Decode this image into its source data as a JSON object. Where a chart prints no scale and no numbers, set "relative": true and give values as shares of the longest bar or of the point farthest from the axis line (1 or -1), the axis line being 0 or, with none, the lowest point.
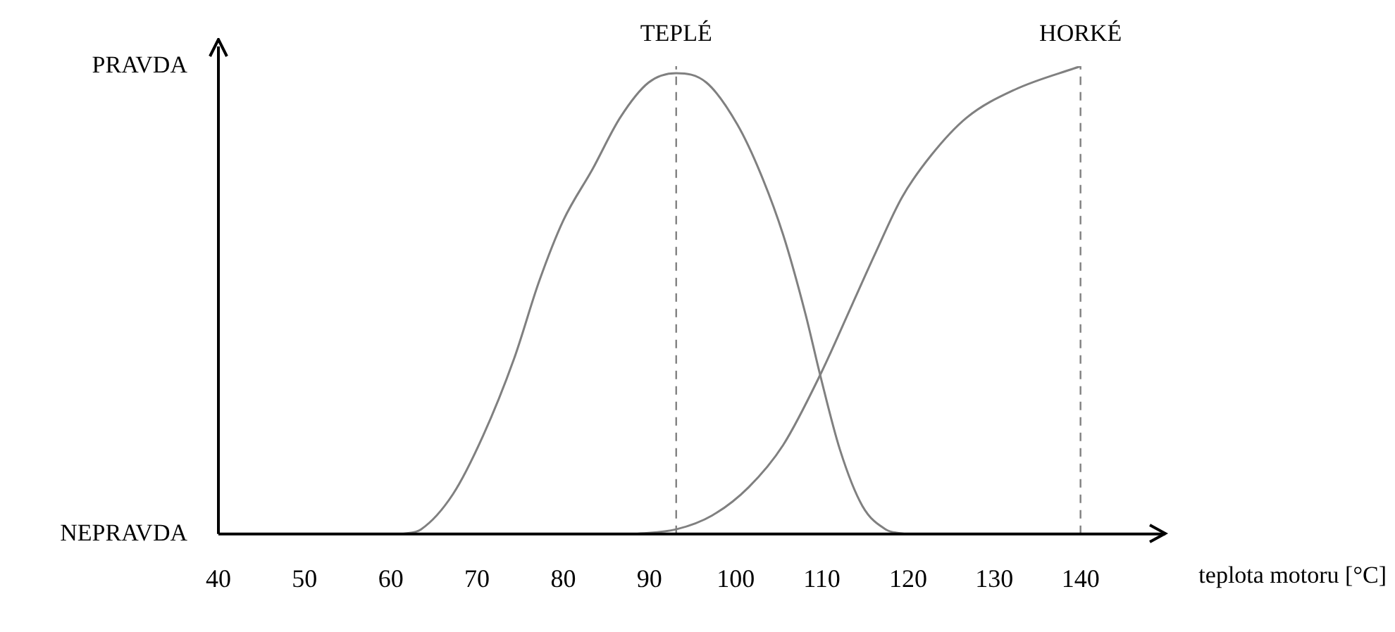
{
  "chart_data": {
    "type": "line",
    "xlabel": "teplota motoru [°C]",
    "xlim": [
      40,
      150
    ],
    "xticks": [
      40,
      50,
      60,
      70,
      80,
      90,
      100,
      110,
      120,
      130,
      140
    ],
    "relative": true,
    "annotations": [
      "PRAVDA",
      "NEPRAVDA"
    ],
    "grid": false,
    "legend": false,
    "marker": "none",
    "line_style": "solid",
    "series": [
      {
        "name": "TEPLÉ",
        "color": "#808080",
        "x": [
          61.3,
          63.5,
          67.2,
          70.7,
          74.3,
          77.2,
          80,
          83.4,
          86.6,
          89.9,
          93.1,
          96.6,
          100.2,
          102.9,
          105.5,
          108.1,
          109.8,
          112.1,
          114.7,
          117.4,
          119.7
        ],
        "values": [
          0,
          0.01,
          0.085,
          0.21,
          0.375,
          0.54,
          0.67,
          0.78,
          0.89,
          0.965,
          0.985,
          0.965,
          0.875,
          0.77,
          0.64,
          0.47,
          0.34,
          0.18,
          0.06,
          0.01,
          0
        ]
      },
      {
        "name": "HORKÉ",
        "color": "#808080",
        "x": [
          88.3,
          93.1,
          97.3,
          101.5,
          105.5,
          109.8,
          113.5,
          116.2,
          119.3,
          122.7,
          126.8,
          132.4,
          140
        ],
        "values": [
          0,
          0.01,
          0.04,
          0.1,
          0.19,
          0.34,
          0.49,
          0.6,
          0.72,
          0.81,
          0.89,
          0.95,
          1
        ]
      }
    ],
    "ref_lines": [
      {
        "axis": "x",
        "value": 93.1,
        "color": "#808080",
        "line_style": "dashed"
      },
      {
        "axis": "x",
        "value": 140,
        "color": "#808080",
        "line_style": "dashed"
      }
    ]
  }
}
